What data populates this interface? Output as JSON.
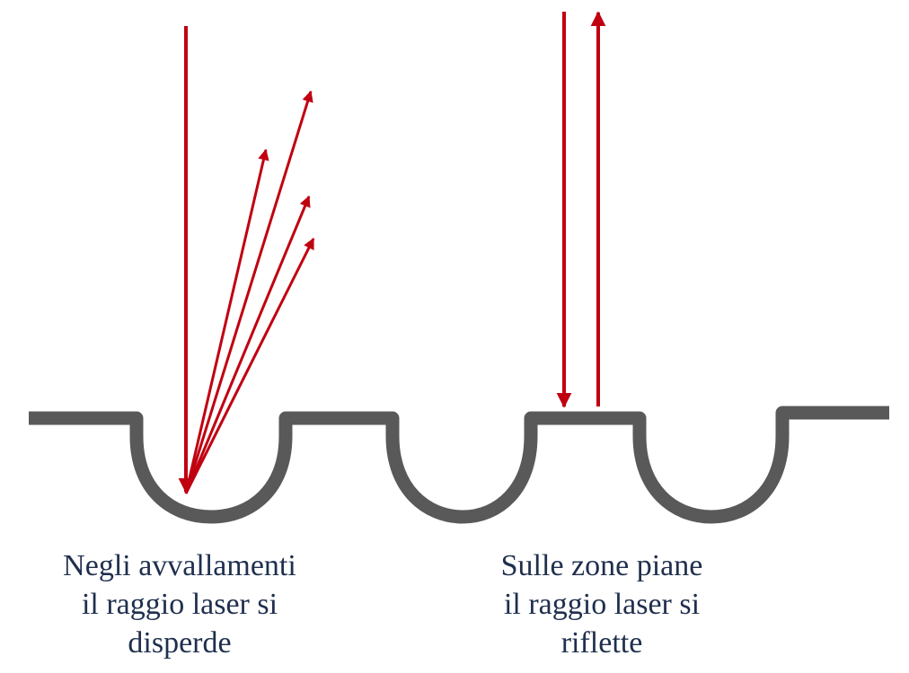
{
  "colors": {
    "surface": "#595959",
    "laser": "#c00010",
    "text": "#1f2f4d"
  },
  "captions": {
    "left": {
      "line1": "Negli avvallamenti",
      "line2": "il raggio laser si",
      "line3": "disperde"
    },
    "right": {
      "line1": "Sulle zone piane",
      "line2": "il raggio laser si",
      "line3": "riflette"
    }
  }
}
